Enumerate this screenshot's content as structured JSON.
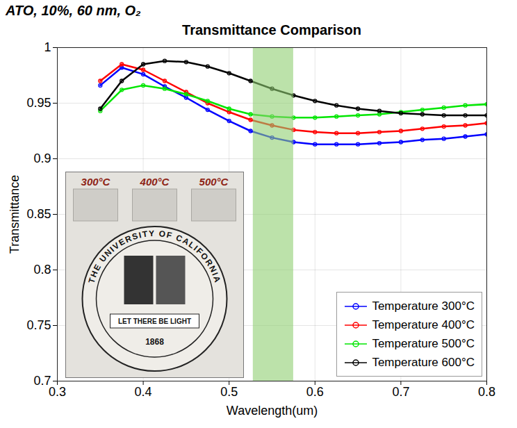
{
  "chart_data": {
    "type": "line",
    "subtitle": "ATO, 10%, 60 nm, O₂",
    "title": "Transmittance Comparison",
    "x_label": "Wavelength(um)",
    "y_label": "Transmittance",
    "x": [
      0.35,
      0.375,
      0.4,
      0.425,
      0.45,
      0.475,
      0.5,
      0.525,
      0.55,
      0.575,
      0.6,
      0.625,
      0.65,
      0.675,
      0.7,
      0.725,
      0.75,
      0.775,
      0.8
    ],
    "series": [
      {
        "name": "Temperature 300°C",
        "color": "#0000ff",
        "marker": "circle",
        "line_style": "solid",
        "values": [
          0.966,
          0.982,
          0.976,
          0.965,
          0.955,
          0.944,
          0.934,
          0.925,
          0.919,
          0.915,
          0.913,
          0.913,
          0.913,
          0.914,
          0.915,
          0.917,
          0.918,
          0.92,
          0.922
        ]
      },
      {
        "name": "Temperature 400°C",
        "color": "#ff0000",
        "marker": "circle",
        "line_style": "solid",
        "values": [
          0.97,
          0.985,
          0.98,
          0.97,
          0.96,
          0.95,
          0.942,
          0.935,
          0.93,
          0.926,
          0.924,
          0.923,
          0.923,
          0.924,
          0.925,
          0.927,
          0.929,
          0.93,
          0.932
        ]
      },
      {
        "name": "Temperature 500°C",
        "color": "#00e600",
        "marker": "circle",
        "line_style": "solid",
        "values": [
          0.943,
          0.962,
          0.966,
          0.963,
          0.958,
          0.952,
          0.945,
          0.94,
          0.938,
          0.937,
          0.937,
          0.938,
          0.939,
          0.94,
          0.942,
          0.944,
          0.946,
          0.948,
          0.949
        ]
      },
      {
        "name": "Temperature 600°C",
        "color": "#000000",
        "marker": "circle",
        "line_style": "solid",
        "values": [
          0.945,
          0.97,
          0.985,
          0.988,
          0.987,
          0.983,
          0.977,
          0.97,
          0.963,
          0.957,
          0.952,
          0.948,
          0.945,
          0.943,
          0.941,
          0.94,
          0.939,
          0.939,
          0.939
        ]
      }
    ],
    "highlight_band": {
      "x": [
        0.528,
        0.575
      ],
      "color": "#8fce72"
    },
    "xlim": [
      0.3,
      0.8
    ],
    "ylim": [
      0.7,
      1
    ],
    "xticks": [
      0.3,
      0.4,
      0.5,
      0.6,
      0.7,
      0.8
    ],
    "yticks": [
      0.7,
      0.75,
      0.8,
      0.85,
      0.9,
      0.95,
      1
    ],
    "grid": true,
    "legend": "bottom-right",
    "inset": {
      "labels": [
        "300°C",
        "400°C",
        "500°C"
      ],
      "seal": {
        "ring": "THE UNIVERSITY OF CALIFORNIA",
        "motto": "LET THERE BE LIGHT",
        "year": "1868"
      }
    }
  }
}
